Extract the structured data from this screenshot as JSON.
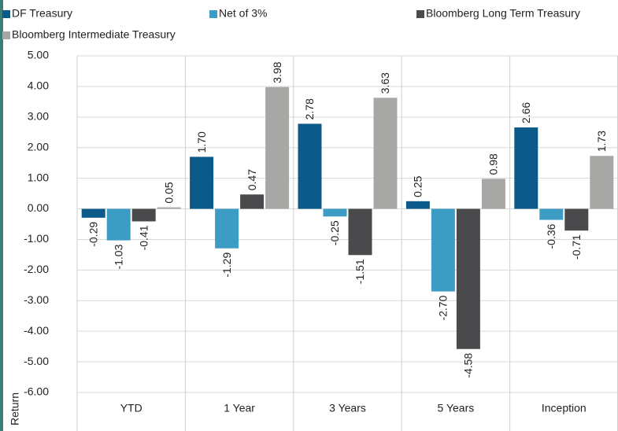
{
  "chart_data": {
    "type": "bar",
    "y_label": "Return",
    "categories": [
      "YTD",
      "1 Year",
      "3 Years",
      "5 Years",
      "Inception"
    ],
    "series": [
      {
        "name": "DF Treasury",
        "color": "#0b5a8a",
        "values": [
          -0.29,
          1.7,
          2.78,
          0.25,
          2.66
        ],
        "value_labels": [
          "-0.29",
          "1.70",
          "2.78",
          "0.25",
          "2.66"
        ]
      },
      {
        "name": "Net of 3%",
        "color": "#3d9cc4",
        "values": [
          -1.03,
          -1.29,
          -0.25,
          -2.7,
          -0.36
        ],
        "value_labels": [
          "-1.03",
          "-1.29",
          "-0.25",
          "-2.70",
          "-0.36"
        ]
      },
      {
        "name": "Bloomberg Long Term Treasury",
        "color": "#4a4a4c",
        "values": [
          -0.41,
          0.47,
          -1.51,
          -4.58,
          -0.71
        ],
        "value_labels": [
          "-0.41",
          "0.47",
          "-1.51",
          "-4.58",
          "-0.71"
        ]
      },
      {
        "name": "Bloomberg Intermediate Treasury",
        "color": "#a7a7a5",
        "values": [
          0.05,
          3.98,
          3.63,
          0.98,
          1.73
        ],
        "value_labels": [
          "0.05",
          "3.98",
          "3.63",
          "0.98",
          "1.73"
        ]
      }
    ],
    "ylim": [
      -6,
      5
    ],
    "yticks": [
      {
        "value": 5,
        "label": "5.00"
      },
      {
        "value": 4,
        "label": "4.00"
      },
      {
        "value": 3,
        "label": "3.00"
      },
      {
        "value": 2,
        "label": "2.00"
      },
      {
        "value": 1,
        "label": "1.00"
      },
      {
        "value": 0,
        "label": "0.00"
      },
      {
        "value": -1,
        "label": "-1.00"
      },
      {
        "value": -2,
        "label": "-2.00"
      },
      {
        "value": -3,
        "label": "-3.00"
      },
      {
        "value": -4,
        "label": "-4.00"
      },
      {
        "value": -5,
        "label": "-5.00"
      },
      {
        "value": -6,
        "label": "-6.00"
      }
    ],
    "grid": true
  }
}
